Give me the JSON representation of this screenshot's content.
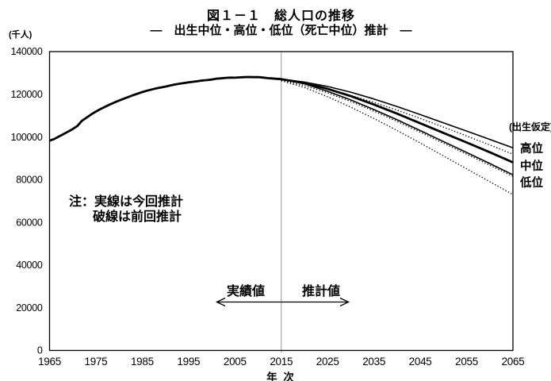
{
  "header": {
    "title": "図１－１　総人口の推移",
    "subtitle": "―　出生中位・高位・低位（死亡中位）推計　―"
  },
  "axes": {
    "y_unit_label": "(千人)",
    "x_axis_title": "年 次"
  },
  "note": {
    "line1": "注：実線は今回推計",
    "line2": "破線は前回推計"
  },
  "period": {
    "actual_label": "実績値",
    "projection_label": "推計値"
  },
  "assumption_labels": {
    "header": "(出生仮定)",
    "high": "高位",
    "medium": "中位",
    "low": "低位"
  },
  "colors": {
    "line": "#000000",
    "divider": "#999999",
    "background": "#ffffff",
    "text": "#000000"
  },
  "chart_data": {
    "type": "line",
    "title": "図１－１　総人口の推移",
    "subtitle": "―　出生中位・高位・低位（死亡中位）推計　―",
    "xlabel": "年 次",
    "ylabel": "(千人)",
    "xlim": [
      1965,
      2065
    ],
    "ylim": [
      0,
      140000
    ],
    "x_ticks": [
      1965,
      1975,
      1985,
      1995,
      2005,
      2015,
      2025,
      2035,
      2045,
      2055,
      2065
    ],
    "y_ticks": [
      0,
      20000,
      40000,
      60000,
      80000,
      100000,
      120000,
      140000
    ],
    "grid": false,
    "divider_year": 2015,
    "legend_note": "実線は今回推計、破線は前回推計",
    "series": [
      {
        "name": "総人口（実績値 1965-2015）",
        "stroke_style": "solid",
        "width": 2.8,
        "points": [
          [
            1965,
            98275
          ],
          [
            1966,
            99036
          ],
          [
            1967,
            100196
          ],
          [
            1968,
            101331
          ],
          [
            1969,
            102536
          ],
          [
            1970,
            103720
          ],
          [
            1971,
            105145
          ],
          [
            1972,
            107595
          ],
          [
            1973,
            109104
          ],
          [
            1974,
            110573
          ],
          [
            1975,
            111940
          ],
          [
            1976,
            113094
          ],
          [
            1977,
            114165
          ],
          [
            1978,
            115190
          ],
          [
            1979,
            116155
          ],
          [
            1980,
            117060
          ],
          [
            1981,
            117902
          ],
          [
            1982,
            118728
          ],
          [
            1983,
            119536
          ],
          [
            1984,
            120305
          ],
          [
            1985,
            121049
          ],
          [
            1986,
            121660
          ],
          [
            1987,
            122239
          ],
          [
            1988,
            122745
          ],
          [
            1989,
            123205
          ],
          [
            1990,
            123611
          ],
          [
            1991,
            124101
          ],
          [
            1992,
            124567
          ],
          [
            1993,
            124938
          ],
          [
            1994,
            125265
          ],
          [
            1995,
            125570
          ],
          [
            1996,
            125859
          ],
          [
            1997,
            126157
          ],
          [
            1998,
            126472
          ],
          [
            1999,
            126667
          ],
          [
            2000,
            126926
          ],
          [
            2001,
            127316
          ],
          [
            2002,
            127486
          ],
          [
            2003,
            127694
          ],
          [
            2004,
            127787
          ],
          [
            2005,
            127768
          ],
          [
            2006,
            127901
          ],
          [
            2007,
            128033
          ],
          [
            2008,
            128084
          ],
          [
            2009,
            128032
          ],
          [
            2010,
            128057
          ],
          [
            2011,
            127834
          ],
          [
            2012,
            127593
          ],
          [
            2013,
            127414
          ],
          [
            2014,
            127237
          ],
          [
            2015,
            127095
          ]
        ]
      },
      {
        "name": "出生高位（今回推計）",
        "stroke_style": "solid",
        "width": 1.6,
        "points": [
          [
            2015,
            127095
          ],
          [
            2020,
            125737
          ],
          [
            2025,
            123658
          ],
          [
            2030,
            120993
          ],
          [
            2035,
            117816
          ],
          [
            2040,
            114252
          ],
          [
            2045,
            110494
          ],
          [
            2050,
            106653
          ],
          [
            2055,
            102787
          ],
          [
            2060,
            98887
          ],
          [
            2065,
            94904
          ]
        ]
      },
      {
        "name": "出生中位（今回推計）",
        "stroke_style": "solid",
        "width": 2.8,
        "points": [
          [
            2015,
            127095
          ],
          [
            2020,
            125325
          ],
          [
            2025,
            122544
          ],
          [
            2030,
            119125
          ],
          [
            2035,
            115216
          ],
          [
            2040,
            110919
          ],
          [
            2045,
            106421
          ],
          [
            2050,
            101923
          ],
          [
            2055,
            97441
          ],
          [
            2060,
            92840
          ],
          [
            2065,
            88077
          ]
        ]
      },
      {
        "name": "出生低位（今回推計）",
        "stroke_style": "solid",
        "width": 1.6,
        "points": [
          [
            2015,
            127095
          ],
          [
            2020,
            124903
          ],
          [
            2025,
            121421
          ],
          [
            2030,
            117358
          ],
          [
            2035,
            112858
          ],
          [
            2040,
            108042
          ],
          [
            2045,
            103005
          ],
          [
            2050,
            97874
          ],
          [
            2055,
            92748
          ],
          [
            2060,
            87572
          ],
          [
            2065,
            82296
          ]
        ]
      },
      {
        "name": "出生高位（前回推計）",
        "stroke_style": "dotted",
        "width": 1.3,
        "points": [
          [
            2015,
            126860
          ],
          [
            2020,
            124956
          ],
          [
            2025,
            122456
          ],
          [
            2030,
            119513
          ],
          [
            2035,
            116194
          ],
          [
            2040,
            112556
          ],
          [
            2045,
            108674
          ],
          [
            2050,
            104619
          ],
          [
            2055,
            100459
          ],
          [
            2060,
            96254
          ],
          [
            2065,
            91958
          ]
        ]
      },
      {
        "name": "出生中位（前回推計）",
        "stroke_style": "dotted",
        "width": 1.3,
        "points": [
          [
            2015,
            126597
          ],
          [
            2020,
            124100
          ],
          [
            2025,
            120659
          ],
          [
            2030,
            116618
          ],
          [
            2035,
            112124
          ],
          [
            2040,
            107276
          ],
          [
            2045,
            102210
          ],
          [
            2050,
            97076
          ],
          [
            2055,
            91933
          ],
          [
            2060,
            86737
          ],
          [
            2065,
            81564
          ]
        ]
      },
      {
        "name": "出生低位（前回推計）",
        "stroke_style": "dotted",
        "width": 1.3,
        "points": [
          [
            2015,
            126337
          ],
          [
            2020,
            123175
          ],
          [
            2025,
            118881
          ],
          [
            2030,
            113956
          ],
          [
            2035,
            108674
          ],
          [
            2040,
            103039
          ],
          [
            2045,
            97147
          ],
          [
            2050,
            91133
          ],
          [
            2055,
            85096
          ],
          [
            2060,
            79067
          ],
          [
            2065,
            73027
          ]
        ]
      }
    ]
  }
}
